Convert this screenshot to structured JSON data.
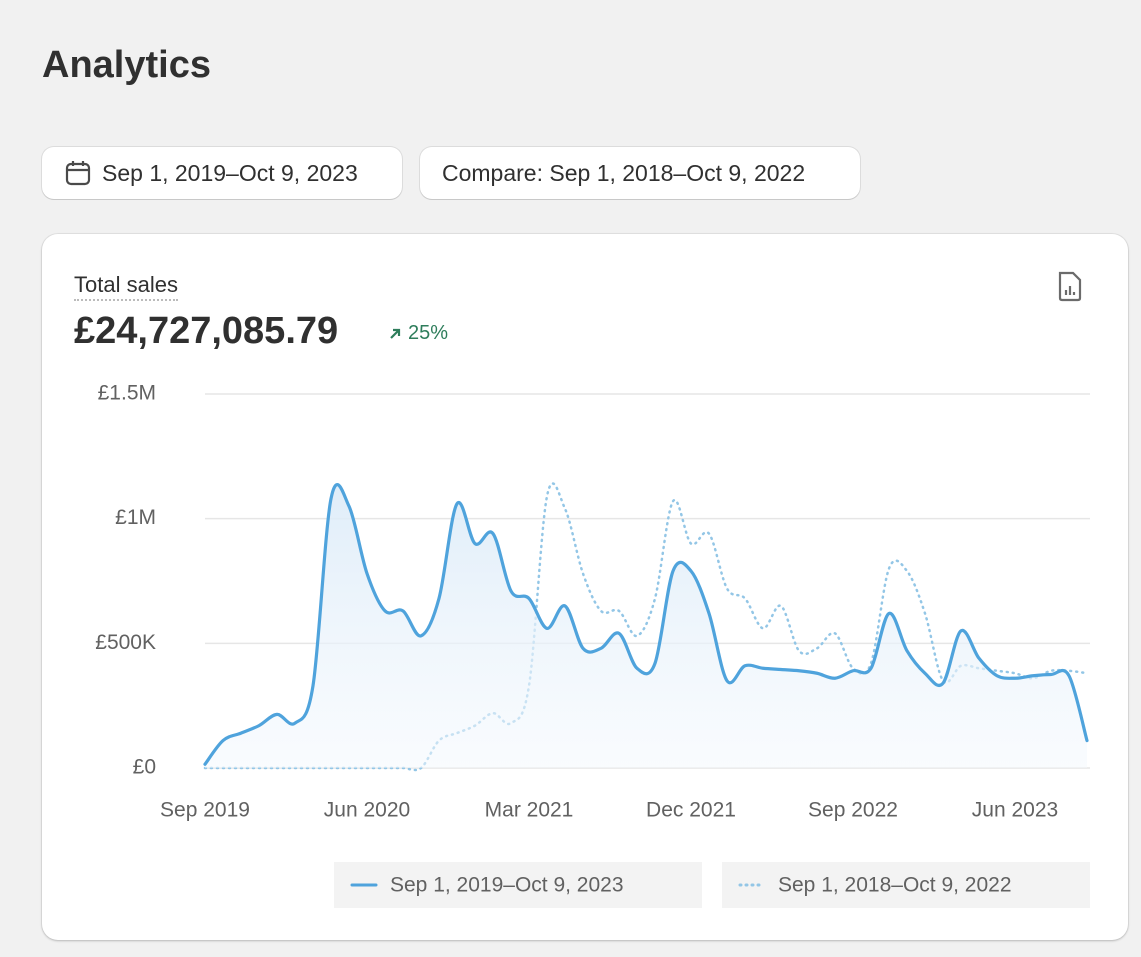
{
  "page": {
    "title": "Analytics",
    "date_range": "Sep 1, 2019–Oct 9, 2023",
    "compare": "Compare: Sep 1, 2018–Oct 9, 2022"
  },
  "card": {
    "metric_label": "Total sales",
    "metric_value": "£24,727,085.79",
    "change": "25%"
  },
  "chart_data": {
    "type": "line",
    "categories": [
      "Sep 2019",
      null,
      null,
      null,
      null,
      null,
      null,
      null,
      null,
      "Jun 2020",
      null,
      null,
      null,
      null,
      null,
      null,
      null,
      null,
      "Mar 2021",
      null,
      null,
      null,
      null,
      null,
      null,
      null,
      null,
      "Dec 2021",
      null,
      null,
      null,
      null,
      null,
      null,
      null,
      null,
      "Sep 2022",
      null,
      null,
      null,
      null,
      null,
      null,
      null,
      null,
      "Jun 2023",
      null,
      null,
      null,
      null
    ],
    "series": [
      {
        "name": "Sep 1, 2019–Oct 9, 2023",
        "color": "#4fa3dc",
        "dash": "solid",
        "fill": true,
        "values": [
          15000,
          110000,
          140000,
          170000,
          215000,
          180000,
          330000,
          1080000,
          1050000,
          780000,
          630000,
          630000,
          530000,
          680000,
          1060000,
          900000,
          940000,
          710000,
          680000,
          560000,
          650000,
          480000,
          480000,
          540000,
          400000,
          420000,
          790000,
          790000,
          620000,
          350000,
          410000,
          400000,
          395000,
          390000,
          380000,
          360000,
          390000,
          400000,
          620000,
          470000,
          380000,
          340000,
          550000,
          440000,
          370000,
          360000,
          370000,
          375000,
          370000,
          110000
        ]
      },
      {
        "name": "Sep 1, 2018–Oct 9, 2022",
        "color": "#93c6e6",
        "dash": "dotted",
        "fill": false,
        "values": [
          0,
          0,
          0,
          0,
          0,
          0,
          0,
          0,
          0,
          0,
          0,
          0,
          0,
          110000,
          140000,
          170000,
          220000,
          180000,
          330000,
          1090000,
          1040000,
          780000,
          630000,
          630000,
          530000,
          680000,
          1070000,
          900000,
          940000,
          720000,
          680000,
          560000,
          650000,
          470000,
          480000,
          540000,
          400000,
          420000,
          800000,
          790000,
          620000,
          350000,
          410000,
          400000,
          390000,
          380000,
          360000,
          390000,
          390000,
          380000
        ]
      }
    ],
    "ylim": [
      0,
      1500000
    ],
    "yticks": [
      {
        "value": 0,
        "label": "£0"
      },
      {
        "value": 500000,
        "label": "£500K"
      },
      {
        "value": 1000000,
        "label": "£1M"
      },
      {
        "value": 1500000,
        "label": "£1.5M"
      }
    ],
    "grid": true
  }
}
